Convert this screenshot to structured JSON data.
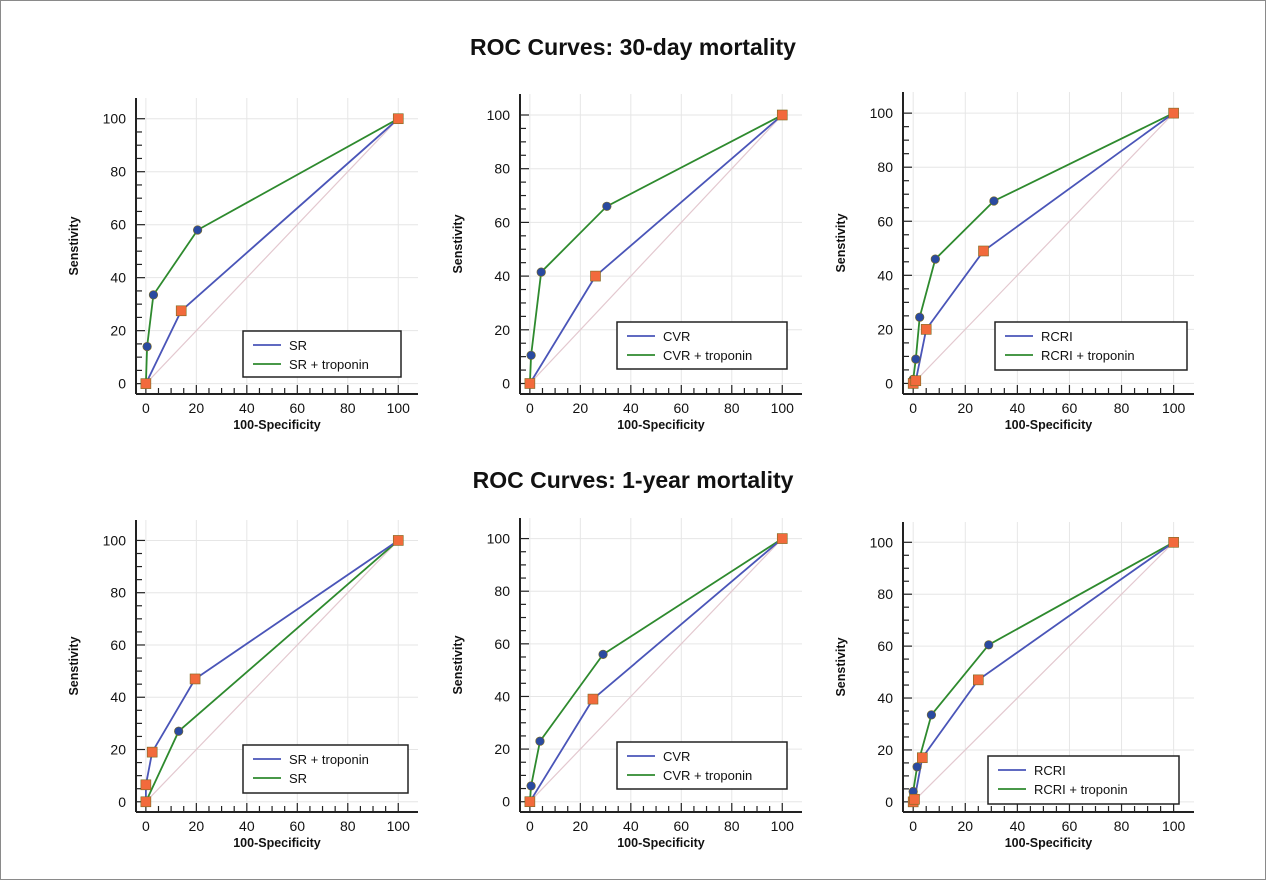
{
  "sections": [
    {
      "title": "ROC Curves: 30-day mortality"
    },
    {
      "title": "ROC Curves: 1-year mortality"
    }
  ],
  "colors": {
    "baseline_series": "#4a55b8",
    "troponin_series": "#2e8a2e",
    "baseline_marker": "#f26a3c",
    "troponin_marker": "#2a4aa0",
    "marker_edge": "#7a6a20",
    "diagonal": "#e3c8cf",
    "grid": "#e6e6e6",
    "axis": "#222222"
  },
  "chart_data": [
    {
      "type": "line",
      "xlabel": "100-Specificity",
      "ylabel": "Senstivity",
      "xlim": [
        0,
        100
      ],
      "ylim": [
        0,
        100
      ],
      "xticks": [
        0,
        20,
        40,
        60,
        80,
        100
      ],
      "yticks": [
        0,
        20,
        40,
        60,
        80,
        100
      ],
      "grid": true,
      "legend_position": "bottom-right",
      "series": [
        {
          "name": "SR",
          "color_key": "baseline",
          "points": [
            [
              0,
              0
            ],
            [
              14,
              27.5
            ],
            [
              100,
              100
            ]
          ]
        },
        {
          "name": "SR + troponin",
          "color_key": "troponin",
          "points": [
            [
              0,
              0
            ],
            [
              0.5,
              14
            ],
            [
              3,
              33.5
            ],
            [
              20.5,
              58
            ],
            [
              100,
              100
            ]
          ]
        }
      ]
    },
    {
      "type": "line",
      "xlabel": "100-Specificity",
      "ylabel": "Senstivity",
      "xlim": [
        0,
        100
      ],
      "ylim": [
        0,
        100
      ],
      "xticks": [
        0,
        20,
        40,
        60,
        80,
        100
      ],
      "yticks": [
        0,
        20,
        40,
        60,
        80,
        100
      ],
      "grid": true,
      "legend_position": "bottom-right",
      "series": [
        {
          "name": "CVR",
          "color_key": "baseline",
          "points": [
            [
              0,
              0
            ],
            [
              26,
              40
            ],
            [
              100,
              100
            ]
          ]
        },
        {
          "name": "CVR + troponin",
          "color_key": "troponin",
          "points": [
            [
              0,
              0
            ],
            [
              0.5,
              10.5
            ],
            [
              4.5,
              41.5
            ],
            [
              30.5,
              66
            ],
            [
              100,
              100
            ]
          ]
        }
      ]
    },
    {
      "type": "line",
      "xlabel": "100-Specificity",
      "ylabel": "Senstivity",
      "xlim": [
        0,
        100
      ],
      "ylim": [
        0,
        100
      ],
      "xticks": [
        0,
        20,
        40,
        60,
        80,
        100
      ],
      "yticks": [
        0,
        20,
        40,
        60,
        80,
        100
      ],
      "grid": true,
      "legend_position": "bottom-right",
      "series": [
        {
          "name": "RCRI",
          "color_key": "baseline",
          "points": [
            [
              0,
              0
            ],
            [
              1,
              1
            ],
            [
              5,
              20
            ],
            [
              27,
              49
            ],
            [
              100,
              100
            ]
          ]
        },
        {
          "name": "RCRI + troponin",
          "color_key": "troponin",
          "points": [
            [
              0,
              0
            ],
            [
              0,
              1.5
            ],
            [
              1,
              9
            ],
            [
              2.5,
              24.5
            ],
            [
              8.5,
              46
            ],
            [
              31,
              67.5
            ],
            [
              100,
              100
            ]
          ]
        }
      ]
    },
    {
      "type": "line",
      "xlabel": "100-Specificity",
      "ylabel": "Senstivity",
      "xlim": [
        0,
        100
      ],
      "ylim": [
        0,
        100
      ],
      "xticks": [
        0,
        20,
        40,
        60,
        80,
        100
      ],
      "yticks": [
        0,
        20,
        40,
        60,
        80,
        100
      ],
      "grid": true,
      "legend_position": "bottom-right",
      "series": [
        {
          "name": "SR + troponin",
          "color_key": "baseline",
          "points": [
            [
              0,
              0
            ],
            [
              0,
              6.5
            ],
            [
              2.5,
              19
            ],
            [
              19.5,
              47
            ],
            [
              100,
              100
            ]
          ]
        },
        {
          "name": "SR",
          "color_key": "troponin",
          "points": [
            [
              0,
              0
            ],
            [
              13,
              27
            ],
            [
              100,
              100
            ]
          ]
        }
      ]
    },
    {
      "type": "line",
      "xlabel": "100-Specificity",
      "ylabel": "Senstivity",
      "xlim": [
        0,
        100
      ],
      "ylim": [
        0,
        100
      ],
      "xticks": [
        0,
        20,
        40,
        60,
        80,
        100
      ],
      "yticks": [
        0,
        20,
        40,
        60,
        80,
        100
      ],
      "grid": true,
      "legend_position": "bottom-right",
      "series": [
        {
          "name": "CVR",
          "color_key": "baseline",
          "points": [
            [
              0,
              0
            ],
            [
              25,
              39
            ],
            [
              100,
              100
            ]
          ]
        },
        {
          "name": "CVR + troponin",
          "color_key": "troponin",
          "points": [
            [
              0,
              0
            ],
            [
              0.5,
              6
            ],
            [
              4,
              23
            ],
            [
              29,
              56
            ],
            [
              100,
              100
            ]
          ]
        }
      ]
    },
    {
      "type": "line",
      "xlabel": "100-Specificity",
      "ylabel": "Senstivity",
      "xlim": [
        0,
        100
      ],
      "ylim": [
        0,
        100
      ],
      "xticks": [
        0,
        20,
        40,
        60,
        80,
        100
      ],
      "yticks": [
        0,
        20,
        40,
        60,
        80,
        100
      ],
      "grid": true,
      "legend_position": "bottom-right",
      "series": [
        {
          "name": "RCRI",
          "color_key": "baseline",
          "points": [
            [
              0,
              0
            ],
            [
              0.5,
              1
            ],
            [
              3.5,
              17
            ],
            [
              25,
              47
            ],
            [
              100,
              100
            ]
          ]
        },
        {
          "name": "RCRI + troponin",
          "color_key": "troponin",
          "points": [
            [
              0,
              0
            ],
            [
              0,
              4
            ],
            [
              1.5,
              13.5
            ],
            [
              7,
              33.5
            ],
            [
              29,
              60.5
            ],
            [
              100,
              100
            ]
          ]
        }
      ]
    }
  ]
}
